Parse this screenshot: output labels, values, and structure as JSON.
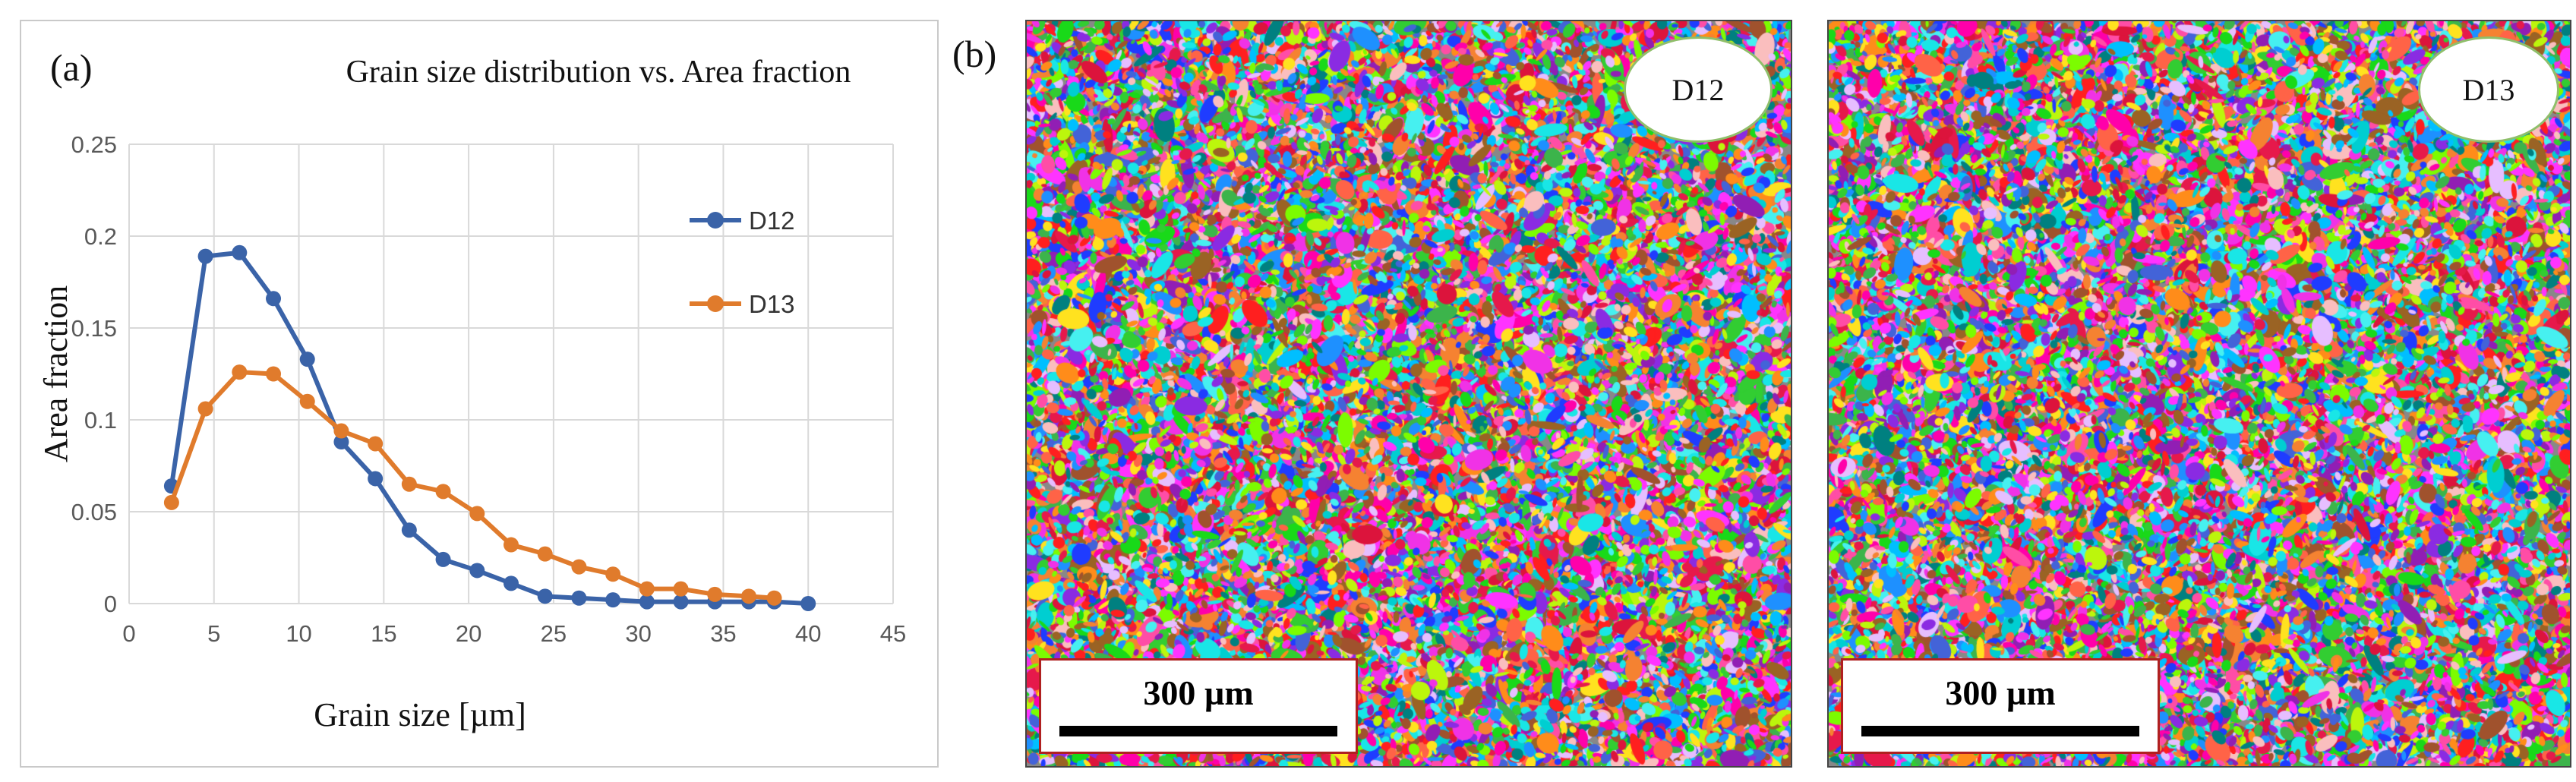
{
  "panel_a": {
    "label": "(a)",
    "title": "Grain size distribution vs. Area fraction"
  },
  "panel_b": {
    "label": "(b)",
    "maps": [
      {
        "name": "D12",
        "scale_bar": "300 µm"
      },
      {
        "name": "D13",
        "scale_bar": "300 µm"
      }
    ]
  },
  "colors": {
    "d12": "#3a63a8",
    "d13": "#e07b2c",
    "grid": "#d9d9d9",
    "axis_text": "#595959"
  },
  "chart_data": {
    "type": "line",
    "title": "Grain size distribution vs. Area fraction",
    "xlabel": "Grain size [µm]",
    "ylabel": "Area fraction",
    "xlim": [
      0,
      45
    ],
    "ylim": [
      0,
      0.25
    ],
    "xticks": [
      0,
      5,
      10,
      15,
      20,
      25,
      30,
      35,
      40,
      45
    ],
    "yticks": [
      0,
      0.05,
      0.1,
      0.15,
      0.2,
      0.25
    ],
    "ytick_labels": [
      "0",
      "0.05",
      "0.1",
      "0.15",
      "0.2",
      "0.25"
    ],
    "grid": true,
    "legend_position": "right",
    "series": [
      {
        "name": "D12",
        "x": [
          2.5,
          4.5,
          6.5,
          8.5,
          10.5,
          12.5,
          14.5,
          16.5,
          18.5,
          20.5,
          22.5,
          24.5,
          26.5,
          28.5,
          30.5,
          32.5,
          34.5,
          36.5,
          38,
          40
        ],
        "y": [
          0.064,
          0.189,
          0.191,
          0.166,
          0.133,
          0.088,
          0.068,
          0.04,
          0.024,
          0.018,
          0.011,
          0.004,
          0.003,
          0.002,
          0.001,
          0.001,
          0.001,
          0.001,
          0.001,
          0.0
        ]
      },
      {
        "name": "D13",
        "x": [
          2.5,
          4.5,
          6.5,
          8.5,
          10.5,
          12.5,
          14.5,
          16.5,
          18.5,
          20.5,
          22.5,
          24.5,
          26.5,
          28.5,
          30.5,
          32.5,
          34.5,
          36.5,
          38
        ],
        "y": [
          0.055,
          0.106,
          0.126,
          0.125,
          0.11,
          0.094,
          0.087,
          0.065,
          0.061,
          0.049,
          0.032,
          0.027,
          0.02,
          0.016,
          0.008,
          0.008,
          0.005,
          0.004,
          0.003
        ]
      }
    ]
  }
}
